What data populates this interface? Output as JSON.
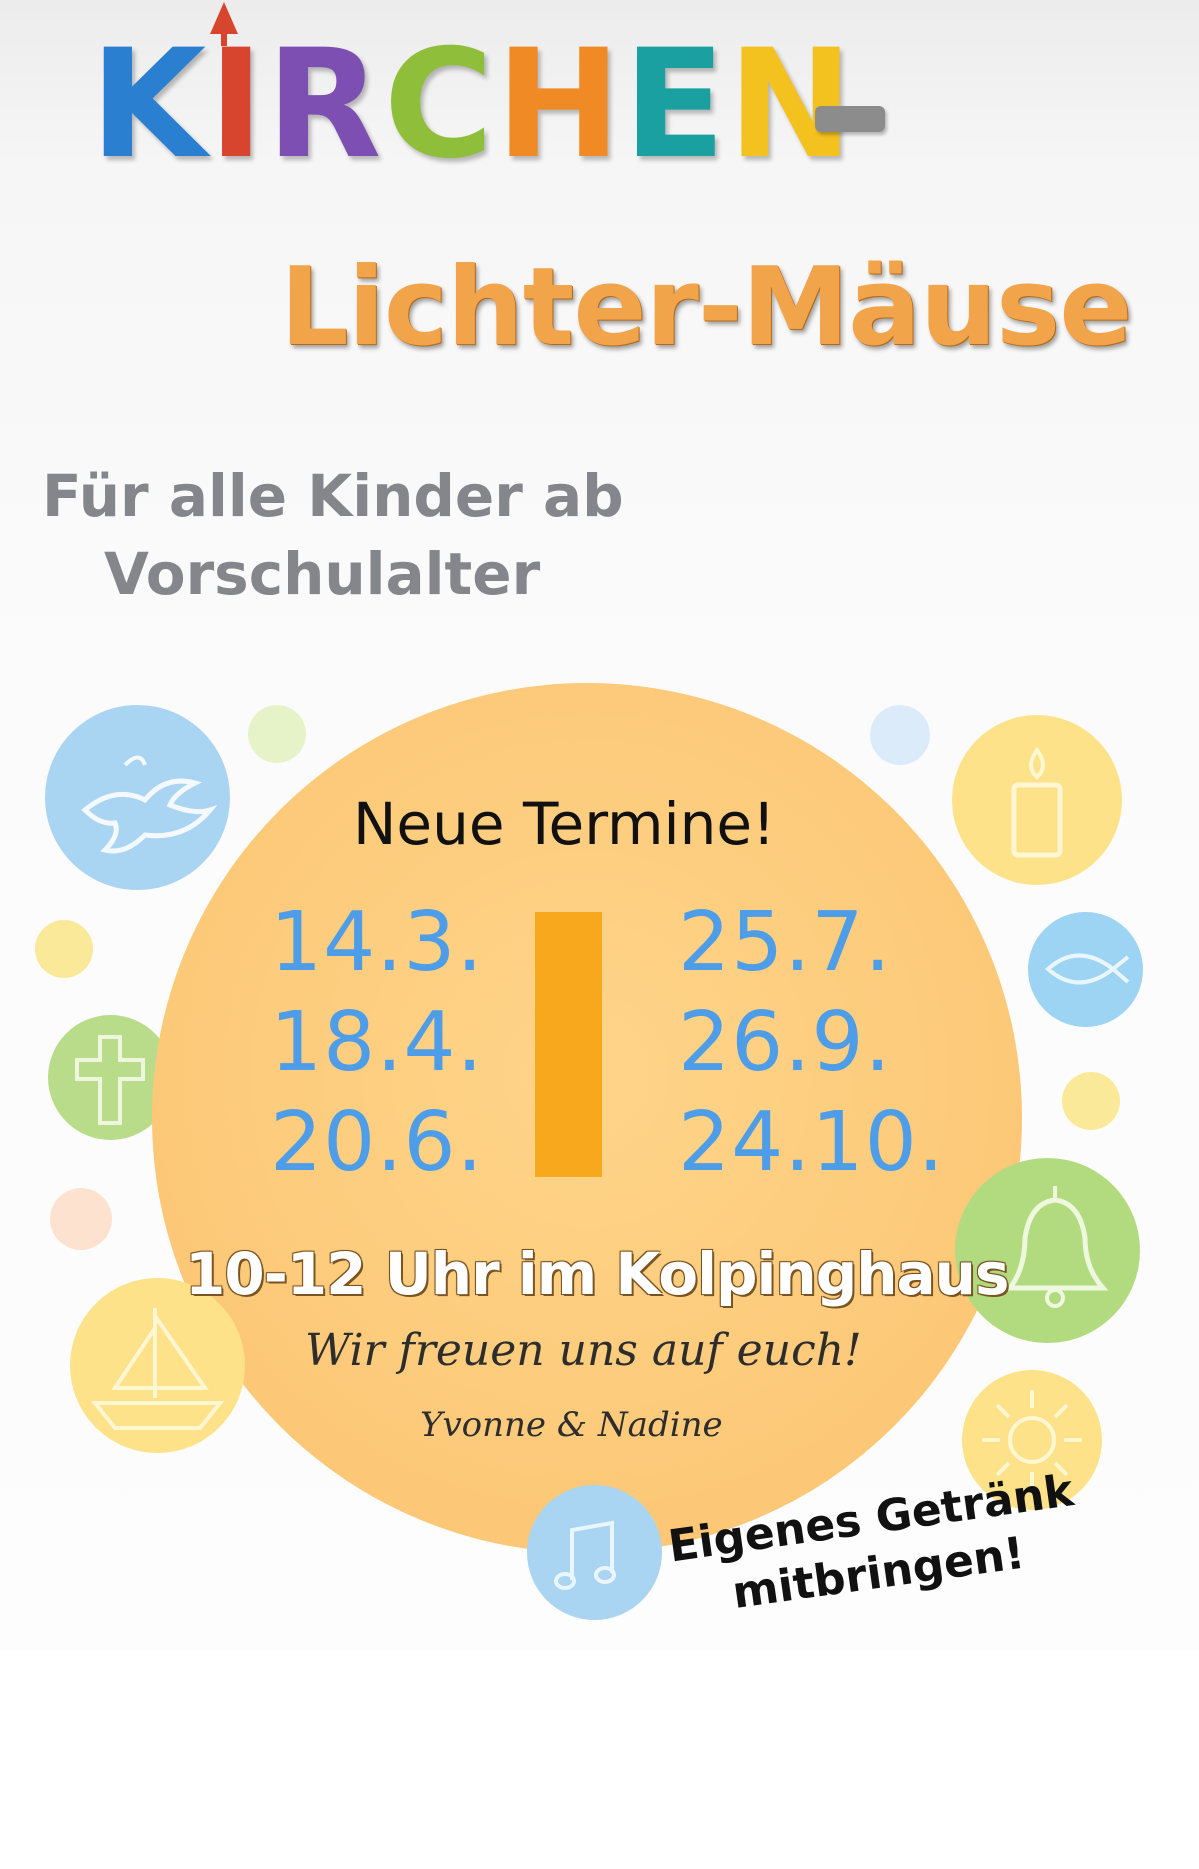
{
  "header": {
    "letters": [
      {
        "char": "K",
        "color": "#2a7fd0"
      },
      {
        "char": "I",
        "color": "#d8452f"
      },
      {
        "char": "R",
        "color": "#7d4fb3"
      },
      {
        "char": "C",
        "color": "#8fbf3a"
      },
      {
        "char": "H",
        "color": "#f08a24"
      },
      {
        "char": "E",
        "color": "#1aa0a0"
      },
      {
        "char": "N",
        "color": "#f3c21f"
      }
    ],
    "dash_color": "#8c8c8c",
    "subtitle": "Lichter-Mäuse"
  },
  "audience": {
    "line1": "Für alle Kinder ab",
    "line2": "Vorschulalter"
  },
  "schedule": {
    "heading": "Neue Termine!",
    "dates_left": [
      "14.3.",
      "18.4.",
      "20.6."
    ],
    "dates_right": [
      "25.7.",
      "26.9.",
      "24.10."
    ],
    "time_place": "10-12 Uhr im Kolpinghaus",
    "greeting": "Wir freuen uns auf euch!",
    "hosts": "Yvonne & Nadine"
  },
  "note": {
    "line1": "Eigenes Getränk",
    "line2": "mitbringen!"
  },
  "icons": [
    "dove-icon",
    "candle-icon",
    "fish-icon",
    "cross-icon",
    "bell-icon",
    "boat-icon",
    "sun-icon",
    "music-notes-icon"
  ],
  "colors": {
    "date_blue": "#4d9de8",
    "circle_orange": "#fcc877",
    "bar_orange": "#f7a81d",
    "subtitle_orange": "#f2a44a"
  }
}
